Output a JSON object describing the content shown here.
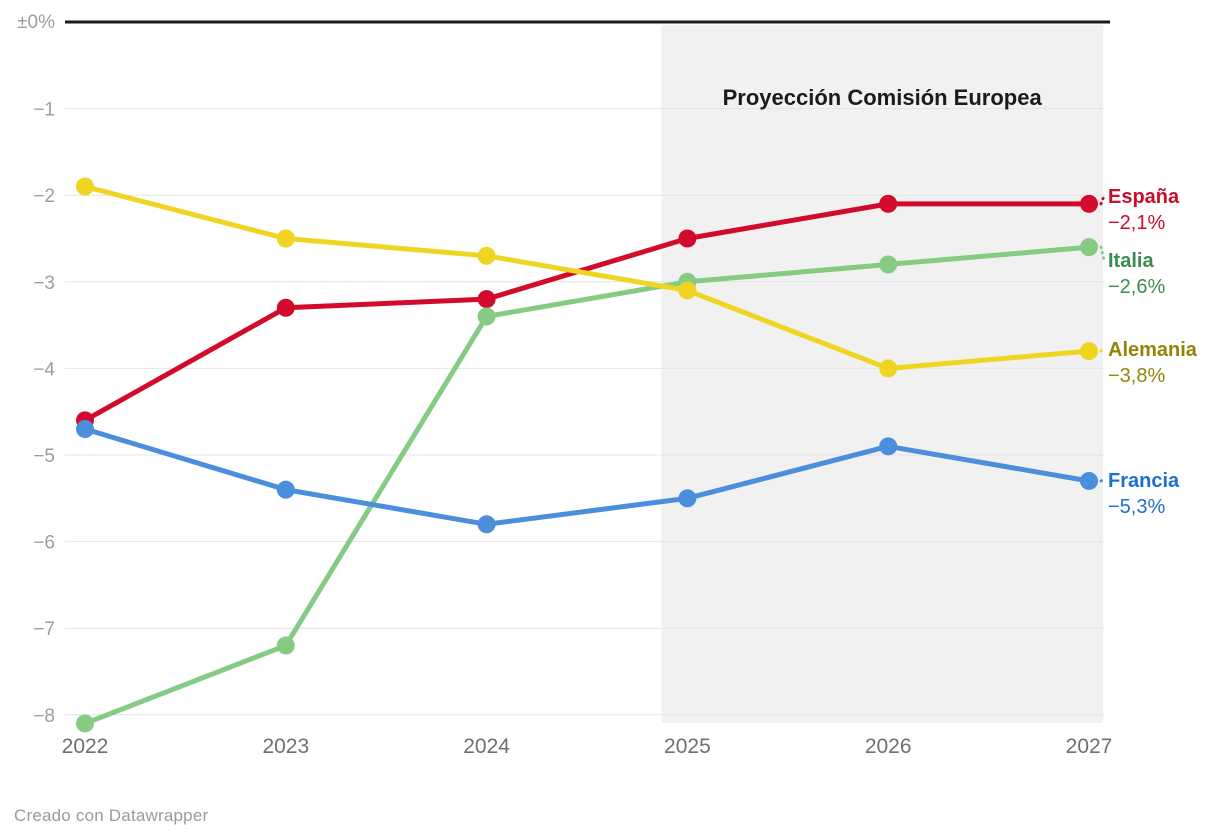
{
  "chart_data": {
    "type": "line",
    "x": [
      2022,
      2023,
      2024,
      2025,
      2026,
      2027
    ],
    "unit": "%",
    "y_axis": {
      "top_label": "±0%",
      "ticks": [
        "−1",
        "−2",
        "−3",
        "−4",
        "−5",
        "−6",
        "−7",
        "−8"
      ],
      "tick_values": [
        -1,
        -2,
        -3,
        -4,
        -5,
        -6,
        -7,
        -8
      ],
      "range": [
        0,
        -8.35
      ],
      "grid": true
    },
    "series": [
      {
        "name": "España",
        "values": [
          -4.6,
          -3.3,
          -3.2,
          -2.5,
          -2.1,
          -2.1
        ],
        "end_label": "−2,1%",
        "color": "#d20b2c",
        "label_color": "#c90e2d"
      },
      {
        "name": "Italia",
        "values": [
          -8.1,
          -7.2,
          -3.4,
          -3.0,
          -2.8,
          -2.6
        ],
        "end_label": "−2,6%",
        "color": "#85cb83",
        "label_color": "#3c8d4d"
      },
      {
        "name": "Alemania",
        "values": [
          -1.9,
          -2.5,
          -2.7,
          -3.1,
          -4.0,
          -3.8
        ],
        "end_label": "−3,8%",
        "color": "#efd521",
        "label_color": "#94840a"
      },
      {
        "name": "Francia",
        "values": [
          -4.7,
          -5.4,
          -5.8,
          -5.5,
          -4.9,
          -5.3
        ],
        "end_label": "−5,3%",
        "color": "#4b8edc",
        "label_color": "#1e70d0"
      }
    ],
    "projection_region": {
      "label": "Proyección Comisión Europea",
      "x_start": 2024.87,
      "x_end": 2027.07,
      "fill": "#f1f1f1",
      "label_color": "#1b1b1b"
    },
    "legend_position": "right-edge-labels",
    "colors": {
      "gridline": "#e4e4e4",
      "zero_line": "#1a1a1a",
      "y_tick_text": "#9d9d9d",
      "x_tick_text": "#707070"
    }
  },
  "footer": {
    "credit": "Creado con Datawrapper"
  }
}
